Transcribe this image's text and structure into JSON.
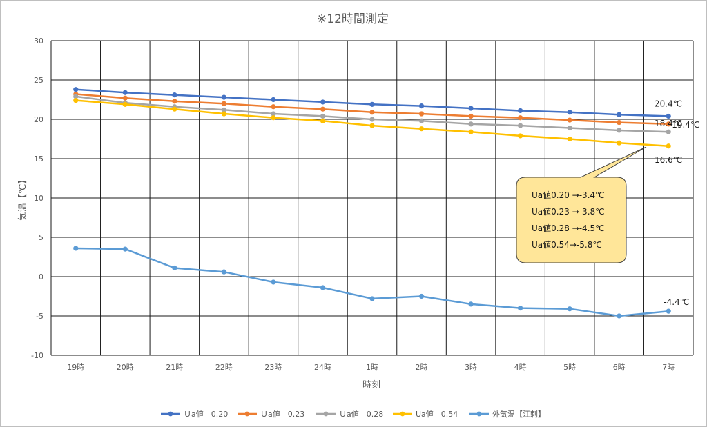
{
  "chart_data": {
    "type": "line",
    "title": "※12時間測定",
    "xlabel": "時刻",
    "ylabel": "気温【℃】",
    "ylim": [
      -10,
      30
    ],
    "yticks": [
      -10,
      -5,
      0,
      5,
      10,
      15,
      20,
      25,
      30
    ],
    "grid": true,
    "legend_position": "bottom",
    "categories": [
      "19時",
      "20時",
      "21時",
      "22時",
      "23時",
      "24時",
      "1時",
      "2時",
      "3時",
      "4時",
      "5時",
      "6時",
      "7時"
    ],
    "series": [
      {
        "name": "Ｕa値　0.20",
        "color": "#4472c4",
        "values": [
          23.8,
          23.4,
          23.1,
          22.8,
          22.5,
          22.2,
          21.9,
          21.7,
          21.4,
          21.1,
          20.9,
          20.6,
          20.4
        ]
      },
      {
        "name": "Ｕa値　0.23",
        "color": "#ed7d31",
        "values": [
          23.2,
          22.7,
          22.3,
          22.0,
          21.6,
          21.3,
          20.9,
          20.7,
          20.4,
          20.2,
          19.9,
          19.6,
          19.4
        ]
      },
      {
        "name": "Ｕa値　0.28",
        "color": "#a5a5a5",
        "values": [
          22.9,
          22.1,
          21.6,
          21.2,
          20.7,
          20.4,
          20.0,
          19.8,
          19.4,
          19.2,
          18.9,
          18.6,
          18.4
        ]
      },
      {
        "name": "Ua値　0.54",
        "color": "#ffc000",
        "values": [
          22.4,
          21.9,
          21.3,
          20.7,
          20.2,
          19.8,
          19.2,
          18.8,
          18.4,
          17.9,
          17.5,
          17.0,
          16.6
        ]
      },
      {
        "name": "外気温【江刺】",
        "color": "#5b9bd5",
        "values": [
          3.6,
          3.5,
          1.1,
          0.6,
          -0.7,
          -1.4,
          -2.8,
          -2.5,
          -3.5,
          -4.0,
          -4.1,
          -5.0,
          -4.4
        ]
      }
    ],
    "annotations": {
      "end_labels": [
        "20.4℃",
        "19.4℃",
        "18.4℃",
        "16.6℃",
        "-4.4℃"
      ],
      "callout_lines": [
        "Ua値0.20 →-3.4℃",
        "Ua値0.23 →-3.8℃",
        "Ua値0.28 →-4.5℃",
        "Ua値0.54→-5.8℃"
      ]
    }
  }
}
